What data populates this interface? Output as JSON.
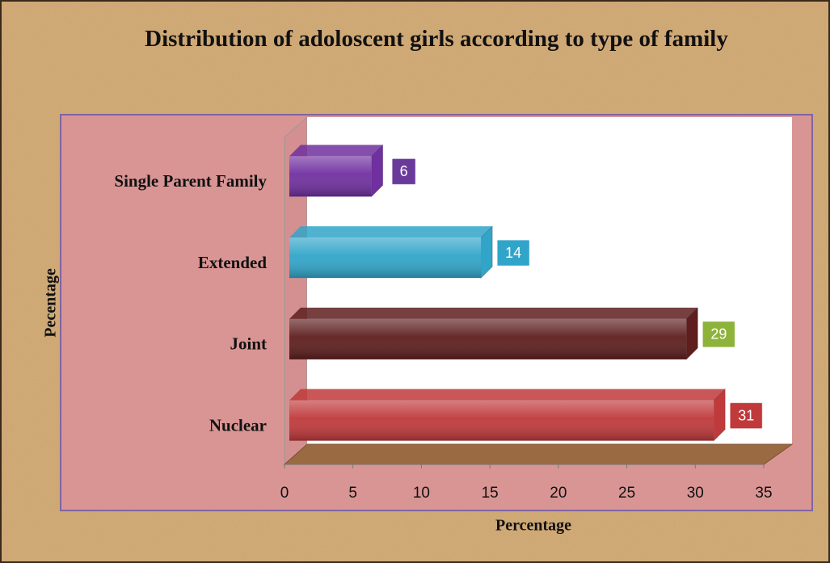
{
  "chart_data": {
    "type": "bar",
    "orientation": "horizontal",
    "title": "Distribution of adoloscent girls according to type of family",
    "x_label": "Percentage",
    "y_label": "Pecentage",
    "categories": [
      "Single Parent Family",
      "Extended",
      "Joint",
      "Nuclear"
    ],
    "values": [
      6,
      14,
      29,
      31
    ],
    "colors": [
      "#7030a0",
      "#31a5c9",
      "#5e1e1e",
      "#c0393b"
    ],
    "label_colors": [
      "#6a3a9a",
      "#31a5c9",
      "#8db33a",
      "#c0393b"
    ],
    "xlim": [
      0,
      35
    ],
    "xticks": [
      0,
      5,
      10,
      15,
      20,
      25,
      30,
      35
    ],
    "grid": false
  }
}
